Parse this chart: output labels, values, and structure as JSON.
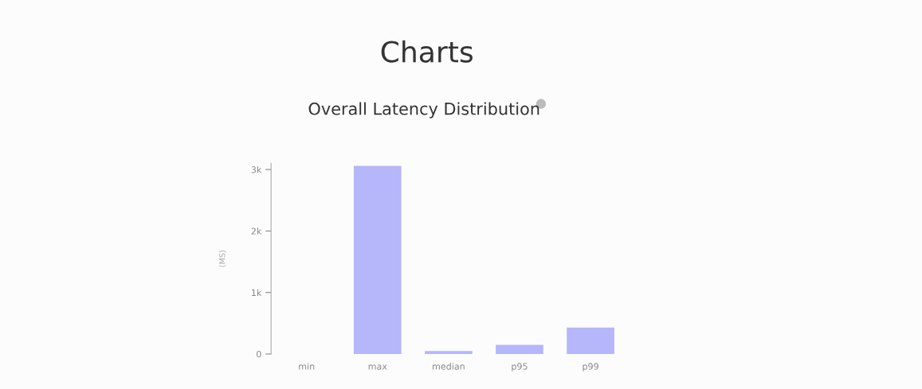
{
  "chart_data": {
    "type": "bar",
    "title": "Charts",
    "subtitle": "Overall Latency Distribution",
    "ylabel": "(MS)",
    "categories": [
      "min",
      "max",
      "median",
      "p95",
      "p99"
    ],
    "values": [
      0,
      3060,
      50,
      150,
      430
    ],
    "color": "#b6b6fb",
    "ylim": [
      0,
      3100
    ],
    "yticks": [
      0,
      {
        "value": 1000,
        "label": "1k"
      },
      {
        "value": 2000,
        "label": "2k"
      },
      {
        "value": 3000,
        "label": "3k"
      }
    ],
    "grid": false,
    "legend": false
  }
}
